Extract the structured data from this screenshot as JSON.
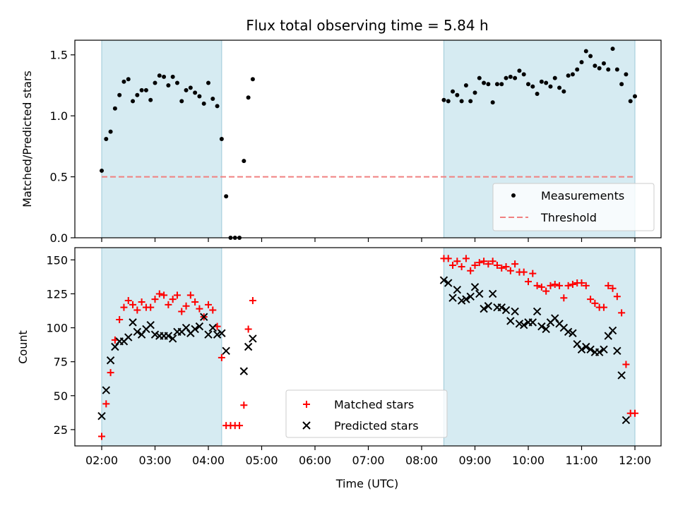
{
  "chart_data": [
    {
      "type": "scatter",
      "title": "Flux total observing time = 5.84 h",
      "ylabel": "Matched/Predicted stars",
      "xlabel": "",
      "ylim": [
        0,
        1.62
      ],
      "yticks": [
        "0.0",
        "0.5",
        "1.0",
        "1.5"
      ],
      "grid": false,
      "legend": "lower-right",
      "shaded_intervals": [
        [
          "02:00",
          "04:15"
        ],
        [
          "08:25",
          "12:00"
        ]
      ],
      "threshold": 0.5,
      "series": [
        {
          "name": "Measurements",
          "marker": "dot",
          "color": "#000000",
          "x": [
            "02:00",
            "02:05",
            "02:10",
            "02:15",
            "02:20",
            "02:25",
            "02:30",
            "02:35",
            "02:40",
            "02:45",
            "02:50",
            "02:55",
            "03:00",
            "03:05",
            "03:10",
            "03:15",
            "03:20",
            "03:25",
            "03:30",
            "03:35",
            "03:40",
            "03:45",
            "03:50",
            "03:55",
            "04:00",
            "04:05",
            "04:10",
            "04:15",
            "04:20",
            "04:25",
            "04:30",
            "04:35",
            "04:40",
            "04:45",
            "04:50",
            "08:25",
            "08:30",
            "08:35",
            "08:40",
            "08:45",
            "08:50",
            "08:55",
            "09:00",
            "09:05",
            "09:10",
            "09:15",
            "09:20",
            "09:25",
            "09:30",
            "09:35",
            "09:40",
            "09:45",
            "09:50",
            "09:55",
            "10:00",
            "10:05",
            "10:10",
            "10:15",
            "10:20",
            "10:25",
            "10:30",
            "10:35",
            "10:40",
            "10:45",
            "10:50",
            "10:55",
            "11:00",
            "11:05",
            "11:10",
            "11:15",
            "11:20",
            "11:25",
            "11:30",
            "11:35",
            "11:40",
            "11:45",
            "11:50",
            "11:55",
            "12:00"
          ],
          "y": [
            0.55,
            0.81,
            0.87,
            1.06,
            1.17,
            1.28,
            1.3,
            1.12,
            1.17,
            1.21,
            1.21,
            1.13,
            1.27,
            1.33,
            1.32,
            1.25,
            1.32,
            1.27,
            1.12,
            1.21,
            1.23,
            1.19,
            1.16,
            1.1,
            1.27,
            1.14,
            1.08,
            0.81,
            0.34,
            0.0,
            0.0,
            0.0,
            0.63,
            1.15,
            1.3,
            1.13,
            1.12,
            1.2,
            1.17,
            1.12,
            1.25,
            1.12,
            1.19,
            1.31,
            1.27,
            1.26,
            1.11,
            1.26,
            1.26,
            1.31,
            1.32,
            1.31,
            1.37,
            1.34,
            1.26,
            1.24,
            1.18,
            1.28,
            1.27,
            1.24,
            1.31,
            1.23,
            1.2,
            1.33,
            1.34,
            1.38,
            1.44,
            1.53,
            1.49,
            1.41,
            1.39,
            1.43,
            1.38,
            1.55,
            1.38,
            1.26,
            1.34,
            1.12,
            1.16
          ]
        },
        {
          "name": "Threshold",
          "marker": "dashed-line",
          "color": "#f08080",
          "x": [
            "02:00",
            "12:00"
          ],
          "y": [
            0.5,
            0.5
          ]
        }
      ]
    },
    {
      "type": "scatter",
      "title": "",
      "ylabel": "Count",
      "xlabel": "Time (UTC)",
      "ylim": [
        13,
        159
      ],
      "yticks": [
        "25",
        "50",
        "75",
        "100",
        "125",
        "150"
      ],
      "xticks": [
        "02:00",
        "03:00",
        "04:00",
        "05:00",
        "06:00",
        "07:00",
        "08:00",
        "09:00",
        "10:00",
        "11:00",
        "12:00"
      ],
      "grid": false,
      "legend": "lower-center",
      "shaded_intervals": [
        [
          "02:00",
          "04:15"
        ],
        [
          "08:25",
          "12:00"
        ]
      ],
      "series": [
        {
          "name": "Matched stars",
          "marker": "plus",
          "color": "#ff0000",
          "x": [
            "02:00",
            "02:05",
            "02:10",
            "02:15",
            "02:20",
            "02:25",
            "02:30",
            "02:35",
            "02:40",
            "02:45",
            "02:50",
            "02:55",
            "03:00",
            "03:05",
            "03:10",
            "03:15",
            "03:20",
            "03:25",
            "03:30",
            "03:35",
            "03:40",
            "03:45",
            "03:50",
            "03:55",
            "04:00",
            "04:05",
            "04:10",
            "04:15",
            "04:20",
            "04:25",
            "04:30",
            "04:35",
            "04:40",
            "04:45",
            "04:50",
            "08:25",
            "08:30",
            "08:35",
            "08:40",
            "08:45",
            "08:50",
            "08:55",
            "09:00",
            "09:05",
            "09:10",
            "09:15",
            "09:20",
            "09:25",
            "09:30",
            "09:35",
            "09:40",
            "09:45",
            "09:50",
            "09:55",
            "10:00",
            "10:05",
            "10:10",
            "10:15",
            "10:20",
            "10:25",
            "10:30",
            "10:35",
            "10:40",
            "10:45",
            "10:50",
            "10:55",
            "11:00",
            "11:05",
            "11:10",
            "11:15",
            "11:20",
            "11:25",
            "11:30",
            "11:35",
            "11:40",
            "11:45",
            "11:50",
            "11:55",
            "12:00"
          ],
          "y": [
            20,
            44,
            67,
            91,
            106,
            115,
            120,
            117,
            113,
            119,
            115,
            115,
            121,
            125,
            124,
            117,
            121,
            124,
            112,
            116,
            124,
            119,
            114,
            108,
            117,
            113,
            101,
            78,
            28,
            28,
            28,
            28,
            43,
            99,
            120,
            151,
            151,
            146,
            149,
            145,
            151,
            142,
            146,
            148,
            149,
            147,
            149,
            146,
            144,
            145,
            142,
            147,
            141,
            141,
            134,
            140,
            131,
            130,
            127,
            131,
            132,
            131,
            122,
            131,
            132,
            133,
            133,
            131,
            121,
            118,
            115,
            115,
            131,
            129,
            123,
            111,
            73,
            37,
            37
          ]
        },
        {
          "name": "Predicted stars",
          "marker": "x",
          "color": "#000000",
          "x": [
            "02:00",
            "02:05",
            "02:10",
            "02:15",
            "02:20",
            "02:25",
            "02:30",
            "02:35",
            "02:40",
            "02:45",
            "02:50",
            "02:55",
            "03:00",
            "03:05",
            "03:10",
            "03:15",
            "03:20",
            "03:25",
            "03:30",
            "03:35",
            "03:40",
            "03:45",
            "03:50",
            "03:55",
            "04:00",
            "04:05",
            "04:10",
            "04:15",
            "04:20",
            "04:25",
            "04:30",
            "04:35",
            "04:40",
            "04:45",
            "04:50",
            "08:25",
            "08:30",
            "08:35",
            "08:40",
            "08:45",
            "08:50",
            "08:55",
            "09:00",
            "09:05",
            "09:10",
            "09:15",
            "09:20",
            "09:25",
            "09:30",
            "09:35",
            "09:40",
            "09:45",
            "09:50",
            "09:55",
            "10:00",
            "10:05",
            "10:10",
            "10:15",
            "10:20",
            "10:25",
            "10:30",
            "10:35",
            "10:40",
            "10:45",
            "10:50",
            "10:55",
            "11:00",
            "11:05",
            "11:10",
            "11:15",
            "11:20",
            "11:25",
            "11:30",
            "11:35",
            "11:40",
            "11:45",
            "11:50",
            "11:55",
            "12:00"
          ],
          "y": [
            35,
            54,
            76,
            86,
            90,
            90,
            93,
            104,
            97,
            95,
            99,
            102,
            95,
            94,
            94,
            94,
            92,
            97,
            97,
            100,
            96,
            99,
            101,
            108,
            95,
            100,
            95,
            96,
            83,
            null,
            null,
            null,
            68,
            86,
            92,
            135,
            133,
            122,
            128,
            120,
            121,
            123,
            130,
            125,
            114,
            116,
            125,
            115,
            115,
            113,
            105,
            112,
            103,
            102,
            104,
            104,
            112,
            101,
            99,
            104,
            107,
            103,
            100,
            97,
            96,
            88,
            84,
            86,
            84,
            82,
            82,
            84,
            94,
            98,
            83,
            65,
            32,
            null,
            null
          ]
        }
      ]
    }
  ]
}
